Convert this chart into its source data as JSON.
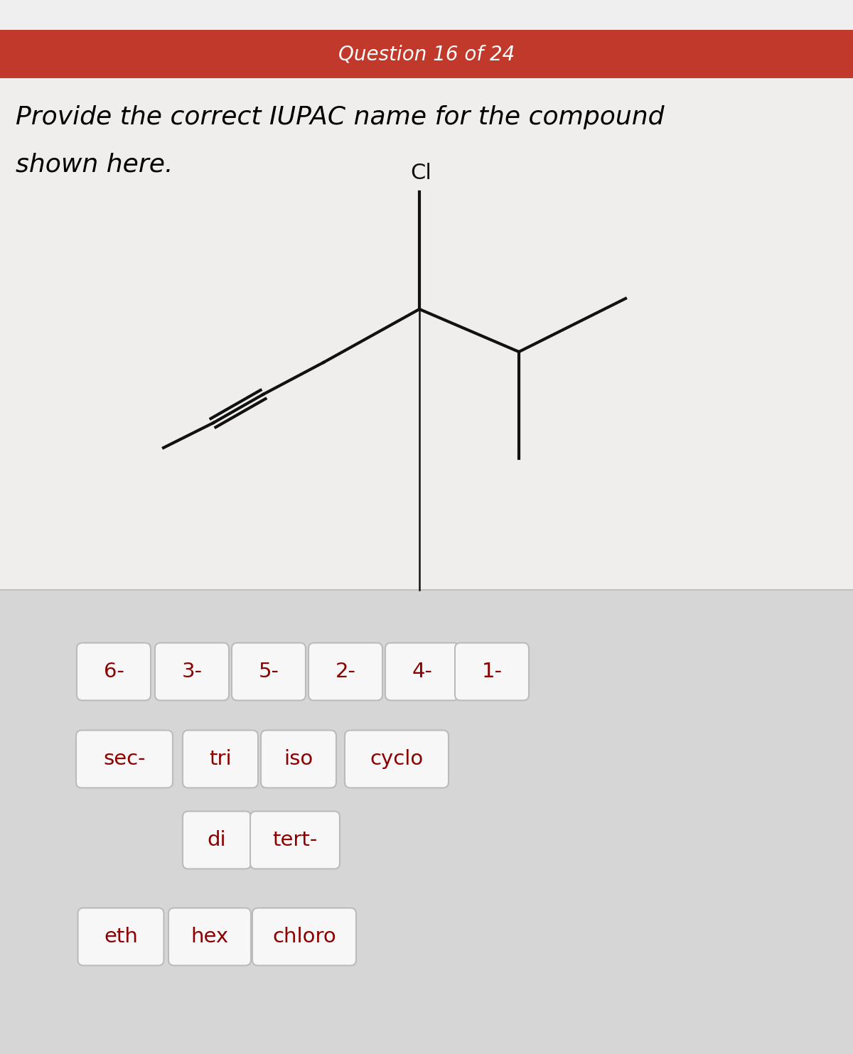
{
  "header_text": "Question 16 of 24",
  "header_color": "#c0392b",
  "header_text_color": "#ffffff",
  "bg_top_color": "#f2f0ee",
  "bg_bottom_color": "#d4d4d4",
  "question_text_line1": "Provide the correct IUPAC name for the compound",
  "question_text_line2": "shown here.",
  "question_text_color": "#000000",
  "question_fontsize": 26,
  "button_bg": "#f7f7f7",
  "button_text_color": "#8b0000",
  "button_border_color": "#bbbbbb",
  "row1_buttons": [
    "6-",
    "3-",
    "5-",
    "2-",
    "4-",
    "1-"
  ],
  "row2_buttons": [
    "sec-",
    "tri",
    "iso",
    "cyclo"
  ],
  "row3_buttons": [
    "di",
    "tert-"
  ],
  "row4_buttons": [
    "eth",
    "hex",
    "chloro"
  ],
  "struct_line_color": "#111111",
  "cl_label": "Cl"
}
